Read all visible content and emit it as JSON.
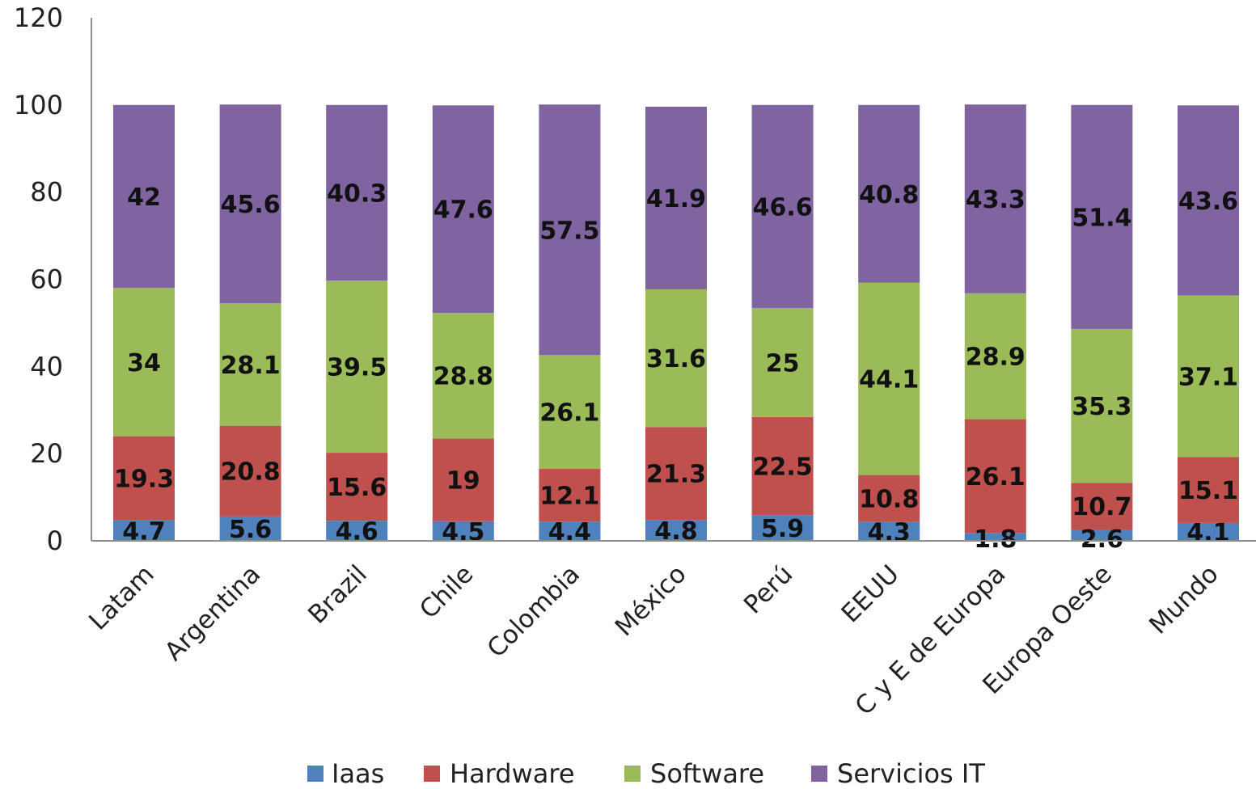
{
  "chart_data": {
    "type": "bar",
    "stacked": true,
    "title": "",
    "xlabel": "",
    "ylabel": "",
    "ylim": [
      0,
      120
    ],
    "yticks": [
      0,
      20,
      40,
      60,
      80,
      100,
      120
    ],
    "grid": false,
    "legend_position": "bottom",
    "categories": [
      "Latam",
      "Argentina",
      "Brazil",
      "Chile",
      "Colombia",
      "México",
      "Perú",
      "EEUU",
      "C y E de Europa",
      "Europa Oeste",
      "Mundo"
    ],
    "series": [
      {
        "name": "Iaas",
        "color": "#4f81bd",
        "values": [
          4.7,
          5.6,
          4.6,
          4.5,
          4.4,
          4.8,
          5.9,
          4.3,
          1.8,
          2.6,
          4.1
        ]
      },
      {
        "name": "Hardware",
        "color": "#c0504d",
        "values": [
          19.3,
          20.8,
          15.6,
          19,
          12.1,
          21.3,
          22.5,
          10.8,
          26.1,
          10.7,
          15.1
        ]
      },
      {
        "name": "Software",
        "color": "#9bbb59",
        "values": [
          34,
          28.1,
          39.5,
          28.8,
          26.1,
          31.6,
          25,
          44.1,
          28.9,
          35.3,
          37.1
        ]
      },
      {
        "name": "Servicios IT",
        "color": "#8064a2",
        "values": [
          42,
          45.6,
          40.3,
          47.6,
          57.5,
          41.9,
          46.6,
          40.8,
          43.3,
          51.4,
          43.6
        ]
      }
    ]
  }
}
